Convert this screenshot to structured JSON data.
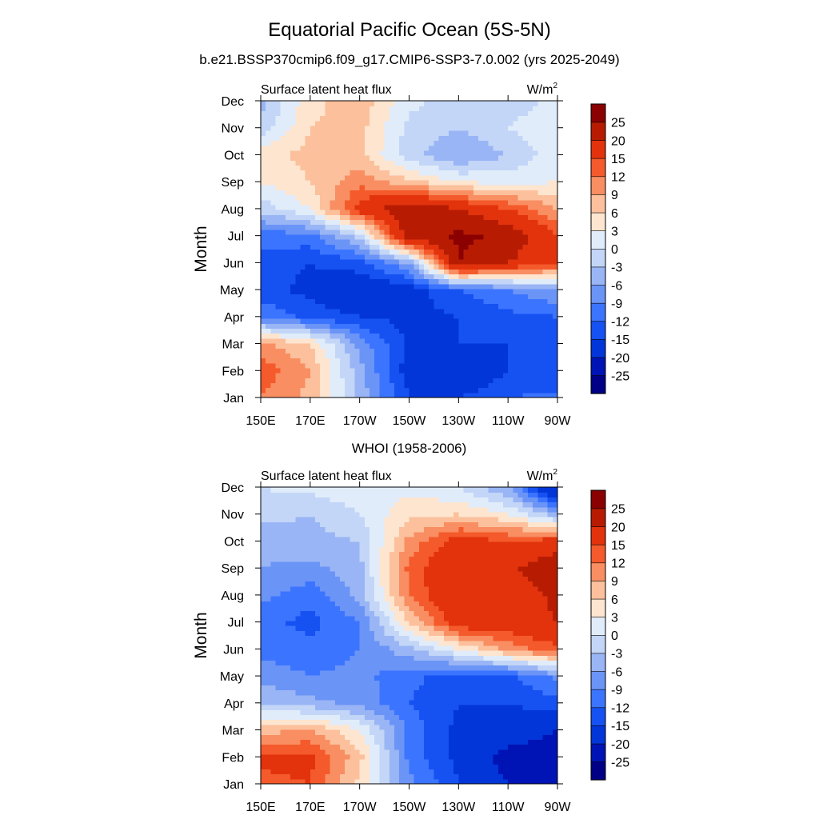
{
  "figure": {
    "title": "Equatorial Pacific Ocean (5S-5N)",
    "subtitle": "b.e21.BSSP370cmip6.f09_g17.CMIP6-SSP3-7.0.002 (yrs 2025-2049)"
  },
  "panels": [
    {
      "panel_title": "",
      "left_label": "Surface latent heat flux",
      "units_base": "W/m",
      "units_exp": "2",
      "ylabel": "Month"
    },
    {
      "panel_title": "WHOI (1958-2006)",
      "left_label": "Surface latent heat flux",
      "units_base": "W/m",
      "units_exp": "2",
      "ylabel": "Month"
    }
  ],
  "axes": {
    "x_ticks": [
      "150E",
      "170E",
      "170W",
      "150W",
      "130W",
      "110W",
      "90W"
    ],
    "y_ticks": [
      "Jan",
      "Feb",
      "Mar",
      "Apr",
      "May",
      "Jun",
      "Jul",
      "Aug",
      "Sep",
      "Oct",
      "Nov",
      "Dec"
    ]
  },
  "colorbar": {
    "labels": [
      "-25",
      "-20",
      "-15",
      "-12",
      "-9",
      "-6",
      "-3",
      "0",
      "3",
      "6",
      "9",
      "12",
      "15",
      "20",
      "25"
    ],
    "colors": [
      "#000087",
      "#0013b5",
      "#0236d9",
      "#1651f2",
      "#3b74ff",
      "#6b94f7",
      "#99b5f5",
      "#c3d6f7",
      "#e1ecfb",
      "#fde5cf",
      "#fcc09c",
      "#f98e62",
      "#f45a2b",
      "#e2330d",
      "#b71c03",
      "#8b0000"
    ]
  },
  "chart_data": [
    {
      "type": "heatmap",
      "title": "Equatorial Pacific Ocean (5S-5N)",
      "subtitle": "b.e21.BSSP370cmip6.f09_g17.CMIP6-SSP3-7.0.002 (yrs 2025-2049)",
      "variable": "Surface latent heat flux",
      "units": "W/m2",
      "xlabel": "",
      "ylabel": "Month",
      "x": [
        150,
        170,
        190,
        210,
        230,
        250,
        270
      ],
      "x_tick_labels": [
        "150E",
        "170E",
        "170W",
        "150W",
        "130W",
        "110W",
        "90W"
      ],
      "y": [
        "Jan",
        "Feb",
        "Mar",
        "Apr",
        "May",
        "Jun",
        "Jul",
        "Aug",
        "Sep",
        "Oct",
        "Nov",
        "Dec"
      ],
      "levels": [
        -25,
        -20,
        -15,
        -12,
        -9,
        -6,
        -3,
        0,
        3,
        6,
        9,
        12,
        15,
        20,
        25
      ],
      "z": [
        [
          12,
          8,
          -4,
          -15,
          -15,
          -12,
          -11
        ],
        [
          14,
          9,
          -5,
          -17,
          -20,
          -15,
          -15
        ],
        [
          10,
          6,
          -7,
          -16,
          -15,
          -15,
          -14
        ],
        [
          -9,
          -13,
          -15,
          -16,
          -15,
          -13,
          -12
        ],
        [
          -14,
          -16,
          -19,
          -17,
          -12,
          -9,
          -6
        ],
        [
          -13,
          -15,
          -13,
          -6,
          25,
          20,
          15
        ],
        [
          -11,
          -10,
          -2,
          23,
          26,
          24,
          15
        ],
        [
          -2,
          3,
          17,
          24,
          20,
          15,
          9
        ],
        [
          3,
          6,
          11,
          7,
          3,
          2,
          3
        ],
        [
          5,
          7,
          7,
          -2,
          -6,
          -3,
          2
        ],
        [
          -2,
          6,
          7,
          -1,
          -3,
          0,
          3
        ],
        [
          -4,
          5,
          8,
          1,
          -2,
          -2,
          1
        ]
      ]
    },
    {
      "type": "heatmap",
      "title": "WHOI (1958-2006)",
      "variable": "Surface latent heat flux",
      "units": "W/m2",
      "xlabel": "",
      "ylabel": "Month",
      "x": [
        150,
        170,
        190,
        210,
        230,
        250,
        270
      ],
      "x_tick_labels": [
        "150E",
        "170E",
        "170W",
        "150W",
        "130W",
        "110W",
        "90W"
      ],
      "y": [
        "Jan",
        "Feb",
        "Mar",
        "Apr",
        "May",
        "Jun",
        "Jul",
        "Aug",
        "Sep",
        "Oct",
        "Nov",
        "Dec"
      ],
      "levels": [
        -25,
        -20,
        -15,
        -12,
        -9,
        -6,
        -3,
        0,
        3,
        6,
        9,
        12,
        15,
        20,
        25
      ],
      "z": [
        [
          14,
          15,
          5,
          -8,
          -15,
          -20,
          -25
        ],
        [
          16,
          16,
          7,
          -10,
          -16,
          -22,
          -23
        ],
        [
          8,
          9,
          3,
          -10,
          -16,
          -17,
          -20
        ],
        [
          -3,
          -5,
          -7,
          -12,
          -15,
          -15,
          -13
        ],
        [
          -7,
          -9,
          -8,
          -11,
          -14,
          -13,
          -8
        ],
        [
          -10,
          -11,
          -9,
          -4,
          3,
          10,
          14
        ],
        [
          -11,
          -13,
          -9,
          6,
          18,
          18,
          20
        ],
        [
          -8,
          -11,
          -5,
          12,
          20,
          17,
          21
        ],
        [
          -6,
          -7,
          -4,
          13,
          20,
          19,
          24
        ],
        [
          -5,
          -4,
          -3,
          10,
          17,
          15,
          17
        ],
        [
          -2,
          -3,
          0,
          5,
          6,
          3,
          -5
        ],
        [
          0,
          1,
          2,
          2,
          0,
          -6,
          -22
        ]
      ]
    }
  ]
}
